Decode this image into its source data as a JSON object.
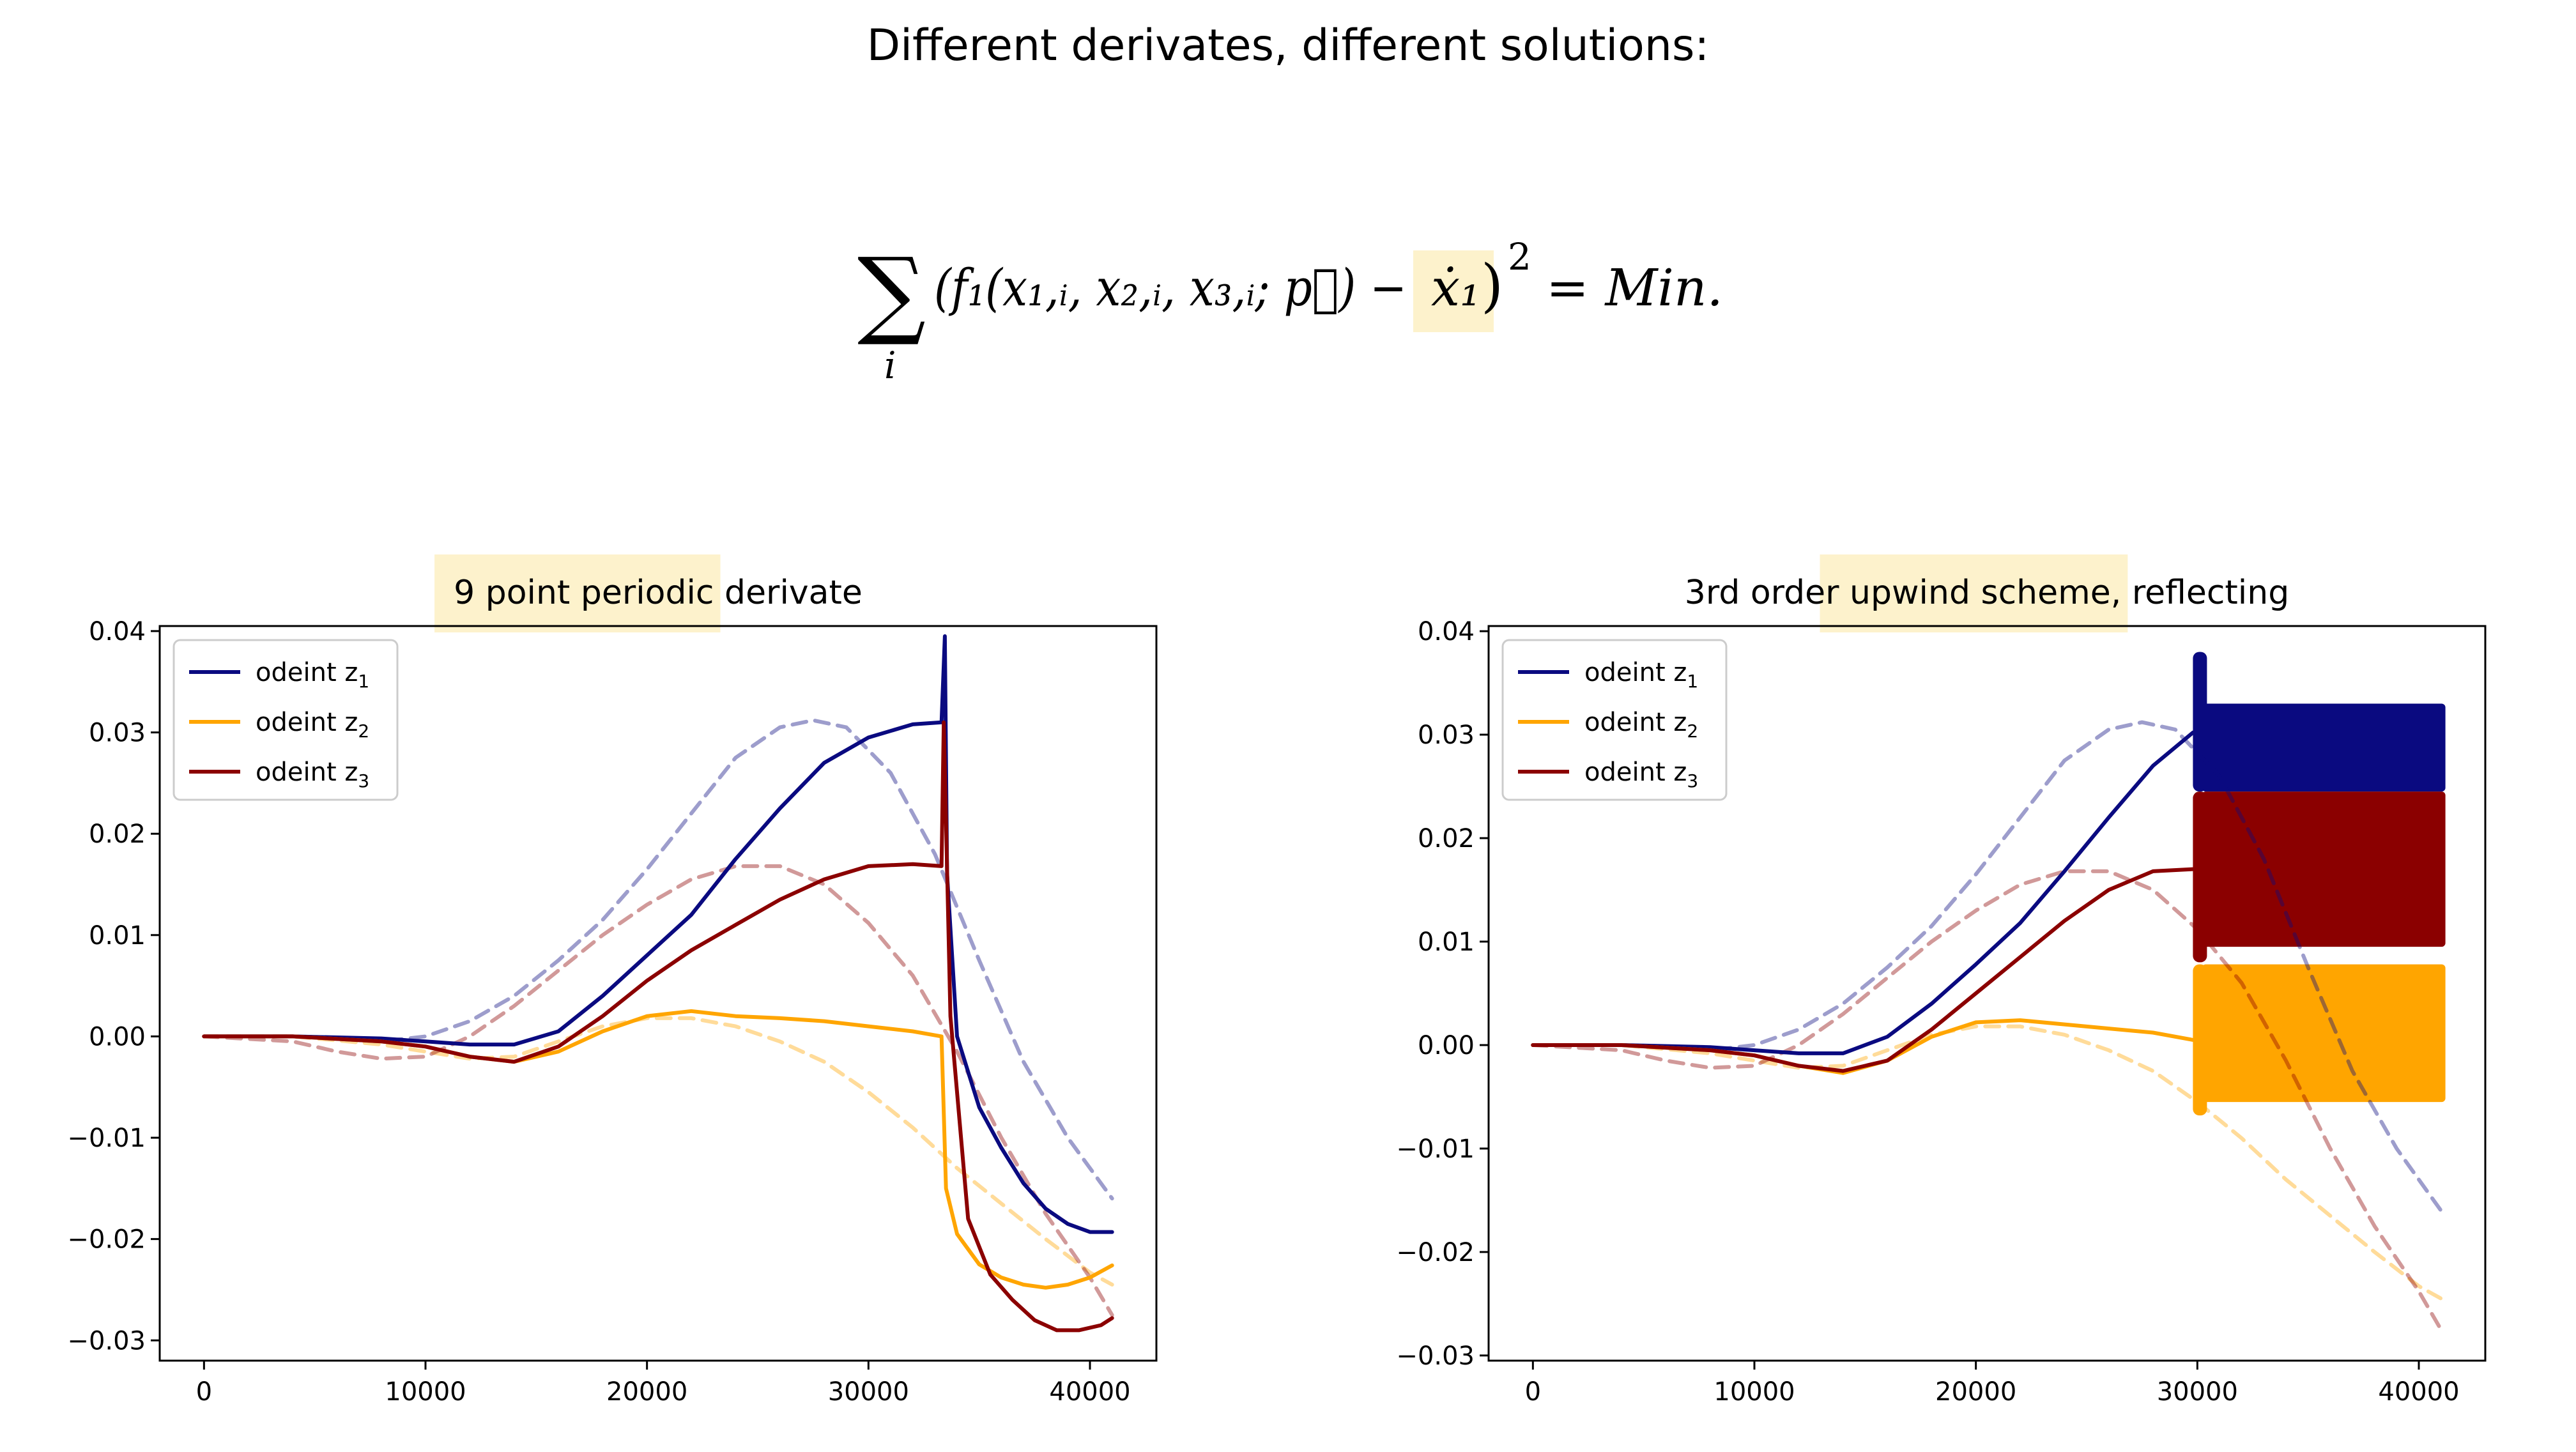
{
  "slide": {
    "title": "Different derivates, different solutions:",
    "formula": {
      "sum_symbol": "∑",
      "sum_index": "i",
      "body": "(f₁(x₁,ᵢ, x₂,ᵢ, x₃,ᵢ; p⃗) −",
      "highlighted_term": "ẋ₁",
      "close": ")",
      "exponent": "2",
      "rhs": "= Min."
    }
  },
  "colors": {
    "z1": "#0a0a80",
    "z2": "#ffa500",
    "z3": "#8b0000",
    "highlight": "#fdf2cc",
    "axes": "#000000"
  },
  "chart_data": [
    {
      "type": "line",
      "title_parts": [
        {
          "text": "9 point periodic",
          "highlight": true
        },
        {
          "text": " derivate",
          "highlight": false
        }
      ],
      "xlim": [
        -2000,
        43000
      ],
      "ylim": [
        -0.032,
        0.0405
      ],
      "xticks": [
        0,
        10000,
        20000,
        30000,
        40000
      ],
      "xtick_labels": [
        "0",
        "10000",
        "20000",
        "30000",
        "40000"
      ],
      "yticks": [
        0.04,
        0.03,
        0.02,
        0.01,
        0.0,
        -0.01,
        -0.02,
        -0.03
      ],
      "ytick_labels": [
        "0.04",
        "0.03",
        "0.02",
        "0.01",
        "0.00",
        "−0.01",
        "−0.02",
        "−0.03"
      ],
      "legend_position": "top-left",
      "legend": [
        {
          "label": "odeint z",
          "sub": "1",
          "color": "#0a0a80"
        },
        {
          "label": "odeint z",
          "sub": "2",
          "color": "#ffa500"
        },
        {
          "label": "odeint z",
          "sub": "3",
          "color": "#8b0000"
        }
      ],
      "series": [
        {
          "name": "odeint z1",
          "color": "#0a0a80",
          "style": "solid",
          "x": [
            0,
            4000,
            8000,
            10000,
            12000,
            14000,
            16000,
            18000,
            20000,
            22000,
            24000,
            26000,
            28000,
            30000,
            32000,
            33300,
            33450,
            33550,
            34000,
            35000,
            36000,
            37000,
            38000,
            39000,
            40000,
            41000
          ],
          "y": [
            0,
            0,
            -0.0002,
            -0.0005,
            -0.0008,
            -0.0008,
            0.0005,
            0.004,
            0.008,
            0.012,
            0.0175,
            0.0225,
            0.027,
            0.0295,
            0.0308,
            0.031,
            0.0395,
            0.016,
            0.0,
            -0.007,
            -0.011,
            -0.0145,
            -0.017,
            -0.0185,
            -0.0193,
            -0.0193
          ]
        },
        {
          "name": "odeint z2",
          "color": "#ffa500",
          "style": "solid",
          "x": [
            0,
            4000,
            8000,
            10000,
            12000,
            14000,
            16000,
            18000,
            20000,
            22000,
            24000,
            26000,
            28000,
            30000,
            32000,
            33300,
            33500,
            34000,
            35000,
            36000,
            37000,
            38000,
            39000,
            40000,
            41000
          ],
          "y": [
            0,
            0,
            -0.0005,
            -0.001,
            -0.002,
            -0.0025,
            -0.0015,
            0.0005,
            0.002,
            0.0025,
            0.002,
            0.0018,
            0.0015,
            0.001,
            0.0005,
            0.0,
            -0.015,
            -0.0195,
            -0.0225,
            -0.0238,
            -0.0245,
            -0.0248,
            -0.0245,
            -0.0238,
            -0.0226
          ]
        },
        {
          "name": "odeint z3",
          "color": "#8b0000",
          "style": "solid",
          "x": [
            0,
            4000,
            8000,
            10000,
            12000,
            14000,
            16000,
            18000,
            20000,
            22000,
            24000,
            26000,
            28000,
            30000,
            32000,
            33300,
            33400,
            33700,
            34500,
            35500,
            36500,
            37500,
            38500,
            39500,
            40500,
            41000
          ],
          "y": [
            0,
            0,
            -0.0005,
            -0.001,
            -0.002,
            -0.0025,
            -0.001,
            0.002,
            0.0055,
            0.0085,
            0.011,
            0.0135,
            0.0155,
            0.0168,
            0.017,
            0.0168,
            0.031,
            0.002,
            -0.018,
            -0.0235,
            -0.026,
            -0.028,
            -0.029,
            -0.029,
            -0.0285,
            -0.0278
          ]
        },
        {
          "name": "",
          "color": "#0a0a80",
          "style": "dashed",
          "opacity": 0.4,
          "x": [
            0,
            4000,
            8000,
            10000,
            12000,
            14000,
            16000,
            18000,
            20000,
            22000,
            24000,
            26000,
            27500,
            29000,
            31000,
            33000,
            35000,
            37000,
            39000,
            41000
          ],
          "y": [
            0,
            0,
            -0.0005,
            0.0,
            0.0015,
            0.004,
            0.0075,
            0.0115,
            0.0165,
            0.022,
            0.0275,
            0.0305,
            0.0312,
            0.0305,
            0.026,
            0.018,
            0.0075,
            -0.0025,
            -0.01,
            -0.016
          ]
        },
        {
          "name": "",
          "color": "#ffa500",
          "style": "dashed",
          "opacity": 0.4,
          "x": [
            0,
            4000,
            8000,
            10000,
            12000,
            14000,
            16000,
            18000,
            20000,
            22000,
            24000,
            26000,
            28000,
            30000,
            32000,
            34000,
            36000,
            38000,
            40000,
            41000
          ],
          "y": [
            0,
            0,
            -0.0008,
            -0.0015,
            -0.0022,
            -0.002,
            -0.0005,
            0.001,
            0.0018,
            0.0018,
            0.001,
            -0.0005,
            -0.0025,
            -0.0055,
            -0.009,
            -0.013,
            -0.0165,
            -0.02,
            -0.0233,
            -0.0245
          ]
        },
        {
          "name": "",
          "color": "#8b0000",
          "style": "dashed",
          "opacity": 0.4,
          "x": [
            0,
            4000,
            6000,
            8000,
            10000,
            12000,
            14000,
            16000,
            18000,
            20000,
            22000,
            24000,
            26000,
            28000,
            30000,
            32000,
            34000,
            36000,
            38000,
            40000,
            41000
          ],
          "y": [
            0,
            -0.0005,
            -0.0015,
            -0.0022,
            -0.002,
            0.0,
            0.003,
            0.0065,
            0.01,
            0.013,
            0.0155,
            0.0168,
            0.0168,
            0.015,
            0.0112,
            0.006,
            -0.0015,
            -0.01,
            -0.0175,
            -0.0238,
            -0.0275
          ]
        }
      ]
    },
    {
      "type": "line",
      "title_parts": [
        {
          "text": "3rd order",
          "highlight": false
        },
        {
          "text": " upwind scheme,",
          "highlight": true
        },
        {
          "text": " reflecting",
          "highlight": false
        }
      ],
      "xlim": [
        -2000,
        43000
      ],
      "ylim": [
        -0.0305,
        0.0405
      ],
      "xticks": [
        0,
        10000,
        20000,
        30000,
        40000
      ],
      "xtick_labels": [
        "0",
        "10000",
        "20000",
        "30000",
        "40000"
      ],
      "yticks": [
        0.04,
        0.03,
        0.02,
        0.01,
        0.0,
        -0.01,
        -0.02,
        -0.03
      ],
      "ytick_labels": [
        "0.04",
        "0.03",
        "0.02",
        "0.01",
        "0.00",
        "−0.01",
        "−0.02",
        "−0.03"
      ],
      "legend_position": "top-left",
      "legend": [
        {
          "label": "odeint z",
          "sub": "1",
          "color": "#0a0a80"
        },
        {
          "label": "odeint z",
          "sub": "2",
          "color": "#ffa500"
        },
        {
          "label": "odeint z",
          "sub": "3",
          "color": "#8b0000"
        }
      ],
      "bands": [
        {
          "color": "#0a0a80",
          "x": [
            29800,
            41200
          ],
          "y": [
            0.0245,
            0.033
          ],
          "spike_top": 0.038,
          "spike_bottom": 0.0245
        },
        {
          "color": "#8b0000",
          "x": [
            29800,
            41200
          ],
          "y": [
            0.0095,
            0.0245
          ],
          "spike_top": 0.0245,
          "spike_bottom": 0.008
        },
        {
          "color": "#ffa500",
          "x": [
            29800,
            41200
          ],
          "y": [
            -0.0055,
            0.0078
          ],
          "spike_top": 0.0078,
          "spike_bottom": -0.0068
        }
      ],
      "series": [
        {
          "name": "odeint z1",
          "color": "#0a0a80",
          "style": "solid",
          "x": [
            0,
            4000,
            8000,
            10000,
            12000,
            14000,
            16000,
            18000,
            20000,
            22000,
            24000,
            26000,
            28000,
            29800
          ],
          "y": [
            0,
            0,
            -0.0002,
            -0.0005,
            -0.0008,
            -0.0008,
            0.0008,
            0.004,
            0.0078,
            0.0118,
            0.0168,
            0.022,
            0.027,
            0.0302
          ]
        },
        {
          "name": "odeint z2",
          "color": "#ffa500",
          "style": "solid",
          "x": [
            0,
            4000,
            8000,
            10000,
            12000,
            14000,
            16000,
            18000,
            20000,
            22000,
            24000,
            26000,
            28000,
            29800
          ],
          "y": [
            0,
            0,
            -0.0005,
            -0.001,
            -0.002,
            -0.0027,
            -0.0015,
            0.0008,
            0.0022,
            0.0024,
            0.002,
            0.0016,
            0.0012,
            0.0005
          ]
        },
        {
          "name": "odeint z3",
          "color": "#8b0000",
          "style": "solid",
          "x": [
            0,
            4000,
            8000,
            10000,
            12000,
            14000,
            16000,
            18000,
            20000,
            22000,
            24000,
            26000,
            28000,
            29800
          ],
          "y": [
            0,
            0,
            -0.0005,
            -0.001,
            -0.002,
            -0.0025,
            -0.0015,
            0.0015,
            0.005,
            0.0085,
            0.012,
            0.015,
            0.0168,
            0.017
          ]
        },
        {
          "name": "",
          "color": "#0a0a80",
          "style": "dashed",
          "opacity": 0.4,
          "x": [
            0,
            4000,
            8000,
            10000,
            12000,
            14000,
            16000,
            18000,
            20000,
            22000,
            24000,
            26000,
            27500,
            29000,
            31000,
            33000,
            35000,
            37000,
            39000,
            41000
          ],
          "y": [
            0,
            0,
            -0.0005,
            0.0,
            0.0015,
            0.004,
            0.0075,
            0.0115,
            0.0165,
            0.022,
            0.0275,
            0.0305,
            0.0312,
            0.0305,
            0.026,
            0.018,
            0.0075,
            -0.0025,
            -0.01,
            -0.016
          ]
        },
        {
          "name": "",
          "color": "#ffa500",
          "style": "dashed",
          "opacity": 0.4,
          "x": [
            0,
            4000,
            8000,
            10000,
            12000,
            14000,
            16000,
            18000,
            20000,
            22000,
            24000,
            26000,
            28000,
            30000,
            32000,
            34000,
            36000,
            38000,
            40000,
            41000
          ],
          "y": [
            0,
            0,
            -0.0008,
            -0.0015,
            -0.0022,
            -0.002,
            -0.0005,
            0.001,
            0.0018,
            0.0018,
            0.001,
            -0.0005,
            -0.0025,
            -0.0055,
            -0.009,
            -0.013,
            -0.0165,
            -0.02,
            -0.0233,
            -0.0245
          ]
        },
        {
          "name": "",
          "color": "#8b0000",
          "style": "dashed",
          "opacity": 0.4,
          "x": [
            0,
            4000,
            6000,
            8000,
            10000,
            12000,
            14000,
            16000,
            18000,
            20000,
            22000,
            24000,
            26000,
            28000,
            30000,
            32000,
            34000,
            36000,
            38000,
            40000,
            41000
          ],
          "y": [
            0,
            -0.0005,
            -0.0015,
            -0.0022,
            -0.002,
            0.0,
            0.003,
            0.0065,
            0.01,
            0.013,
            0.0155,
            0.0168,
            0.0168,
            0.015,
            0.0112,
            0.006,
            -0.0015,
            -0.01,
            -0.0175,
            -0.0238,
            -0.0275
          ]
        }
      ]
    }
  ]
}
